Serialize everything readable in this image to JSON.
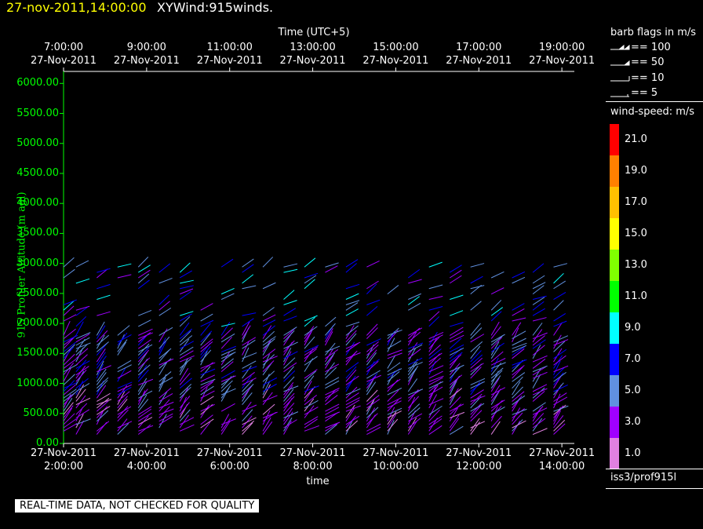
{
  "title": {
    "date": "27-nov-2011,14:00:00",
    "name": "XYWind:915winds."
  },
  "chart_data": {
    "type": "wind-barb",
    "top_axis": {
      "label": "Time (UTC+5)",
      "ticks": [
        {
          "time": "7:00:00",
          "date": "27-Nov-2011"
        },
        {
          "time": "9:00:00",
          "date": "27-Nov-2011"
        },
        {
          "time": "11:00:00",
          "date": "27-Nov-2011"
        },
        {
          "time": "13:00:00",
          "date": "27-Nov-2011"
        },
        {
          "time": "15:00:00",
          "date": "27-Nov-2011"
        },
        {
          "time": "17:00:00",
          "date": "27-Nov-2011"
        },
        {
          "time": "19:00:00",
          "date": "27-Nov-2011"
        }
      ]
    },
    "x_axis": {
      "label": "time",
      "ticks": [
        {
          "date": "27-Nov-2011",
          "time": "2:00:00"
        },
        {
          "date": "27-Nov-2011",
          "time": "4:00:00"
        },
        {
          "date": "27-Nov-2011",
          "time": "6:00:00"
        },
        {
          "date": "27-Nov-2011",
          "time": "8:00:00"
        },
        {
          "date": "27-Nov-2011",
          "time": "10:00:00"
        },
        {
          "date": "27-Nov-2011",
          "time": "12:00:00"
        },
        {
          "date": "27-Nov-2011",
          "time": "14:00:00"
        }
      ],
      "range_hours": [
        2.0,
        14.3
      ]
    },
    "y_axis": {
      "label": "915 Profiler Altitude (m agl)",
      "ticks": [
        "0.00",
        "500.00",
        "1000.00",
        "1500.00",
        "2000.00",
        "2500.00",
        "3000.00",
        "3500.00",
        "4000.00",
        "4500.00",
        "5000.00",
        "5500.00",
        "6000.00"
      ],
      "ylim": [
        0,
        6200
      ]
    },
    "profiles_hours": [
      2.0,
      2.3,
      2.8,
      3.3,
      3.8,
      4.3,
      4.8,
      5.3,
      5.8,
      6.3,
      6.8,
      7.3,
      7.8,
      8.3,
      8.8,
      9.3,
      9.8,
      10.3,
      10.8,
      11.3,
      11.8,
      12.3,
      12.8,
      13.3,
      13.8
    ],
    "barb_note": "representative wind barbs, colored by speed",
    "colors": {
      "axis": "#ffffff",
      "y_axis": "#00ff00",
      "title_date": "#ffff00"
    }
  },
  "legend": {
    "barb_title": "barb flags in m/s",
    "barb_items": [
      "== 100",
      "== 50",
      "== 10",
      "== 5"
    ],
    "speed_title": "wind-speed: m/s",
    "scale": [
      {
        "label": "21.0",
        "color": "#ff0000"
      },
      {
        "label": "19.0",
        "color": "#ff8000"
      },
      {
        "label": "17.0",
        "color": "#ffc000"
      },
      {
        "label": "15.0",
        "color": "#ffff00"
      },
      {
        "label": "13.0",
        "color": "#80ff00"
      },
      {
        "label": "11.0",
        "color": "#00ff00"
      },
      {
        "label": "9.0",
        "color": "#00ffff"
      },
      {
        "label": "7.0",
        "color": "#0000ff"
      },
      {
        "label": "5.0",
        "color": "#6090e0"
      },
      {
        "label": "3.0",
        "color": "#a000ff"
      },
      {
        "label": "1.0",
        "color": "#e080e0"
      }
    ],
    "source": "iss3/prof915l"
  },
  "quality_note": "REAL-TIME DATA, NOT CHECKED FOR QUALITY"
}
